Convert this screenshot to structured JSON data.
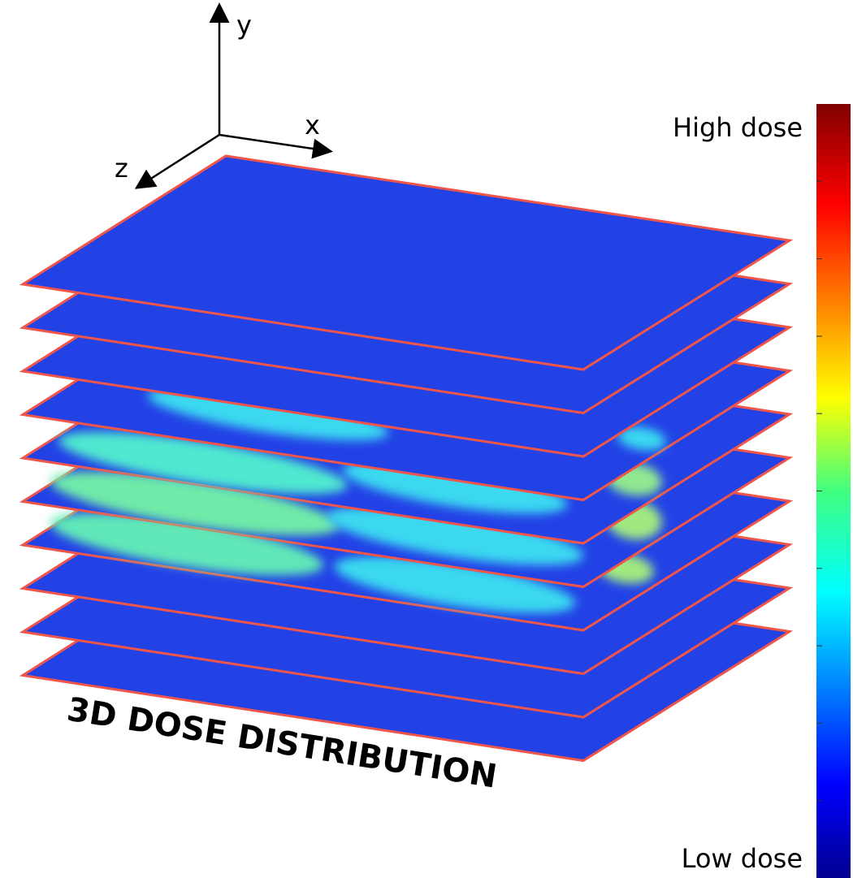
{
  "axes": {
    "y": "y",
    "x": "x",
    "z": "z"
  },
  "colorbar": {
    "high_label": "High dose",
    "low_label": "Low dose"
  },
  "caption": "3D DOSE DISTRIBUTION"
}
